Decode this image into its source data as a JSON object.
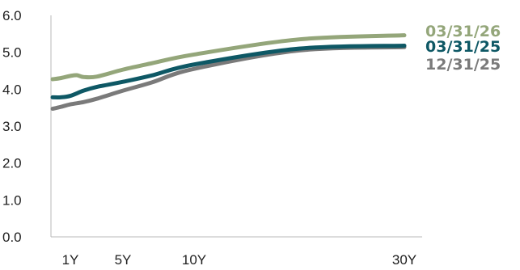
{
  "chart_data": {
    "type": "line",
    "title": "",
    "xlabel": "",
    "ylabel": "",
    "x_tick_labels": [
      "1Y",
      "5Y",
      "10Y",
      "30Y"
    ],
    "x_tick_values": [
      1,
      5,
      10,
      30
    ],
    "xlim": [
      0,
      30
    ],
    "ylim": [
      0,
      6
    ],
    "y_ticks": [
      "0.0",
      "1.0",
      "2.0",
      "3.0",
      "4.0",
      "5.0",
      "6.0"
    ],
    "y_tick_values": [
      0,
      1,
      2,
      3,
      4,
      5,
      6
    ],
    "grid": false,
    "legend_placement": "right",
    "series": [
      {
        "name": "12/31/25",
        "color": "#7a7a7a",
        "x": [
          0.083,
          0.5,
          1,
          2,
          3,
          5,
          7,
          10,
          20,
          30
        ],
        "y": [
          3.47,
          3.52,
          3.59,
          3.65,
          3.74,
          3.96,
          4.18,
          4.55,
          5.05,
          5.14
        ]
      },
      {
        "name": "03/31/25",
        "color": "#0e5865",
        "x": [
          0.083,
          0.5,
          1,
          2,
          3,
          5,
          7,
          10,
          20,
          30
        ],
        "y": [
          3.78,
          3.78,
          3.82,
          3.96,
          4.06,
          4.2,
          4.37,
          4.67,
          5.1,
          5.18
        ]
      },
      {
        "name": "03/31/26",
        "color": "#94a67a",
        "x": [
          0.083,
          0.5,
          1,
          1.5,
          2,
          3,
          5,
          7,
          10,
          20,
          30
        ],
        "y": [
          4.27,
          4.3,
          4.36,
          4.38,
          4.33,
          4.34,
          4.53,
          4.7,
          4.94,
          5.35,
          5.46
        ]
      }
    ]
  }
}
